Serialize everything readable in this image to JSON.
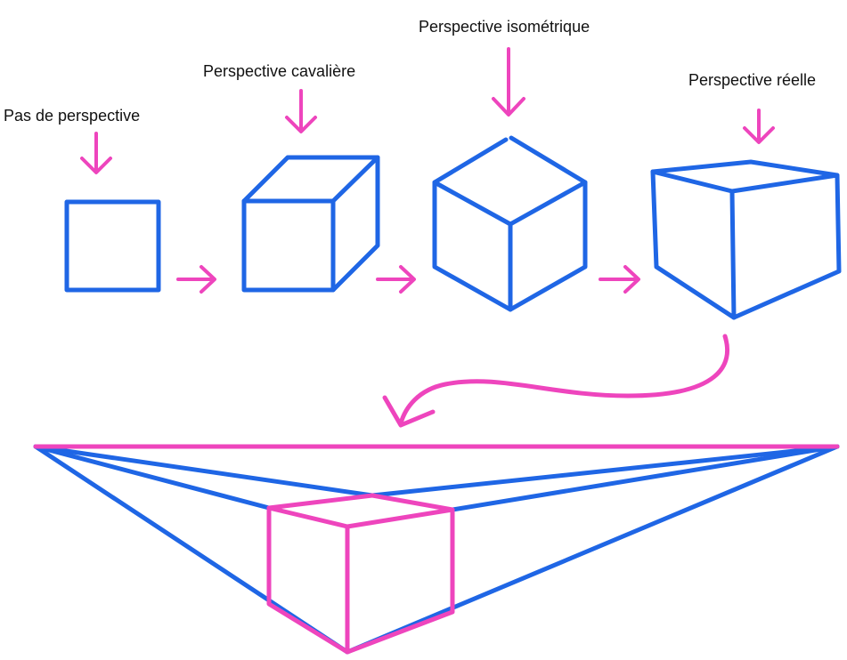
{
  "labels": {
    "no_perspective": "Pas de perspective",
    "cavalier": "Perspective cavalière",
    "isometric": "Perspective isométrique",
    "real": "Perspective réelle"
  },
  "colors": {
    "shape": "#1f66e5",
    "accent": "#ee45bd",
    "text": "#111111",
    "background": "#ffffff"
  }
}
